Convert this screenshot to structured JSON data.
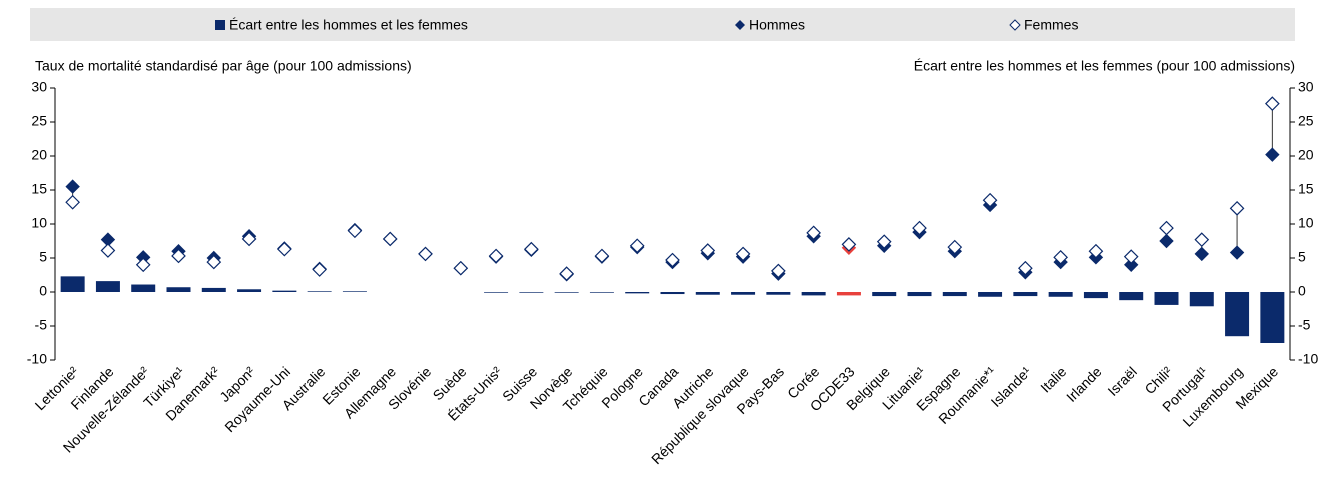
{
  "chart_data": {
    "type": "bar_dot",
    "ylabel": "Taux de mortalité standardisé par âge (pour 100 admissions)",
    "y2label": "Écart entre les hommes et les femmes (pour 100 admissions)",
    "categories": [
      "Lettonie²",
      "Finlande",
      "Nouvelle-Zélande²",
      "Türkiye¹",
      "Danemark²",
      "Japon²",
      "Royaume-Uni",
      "Australie",
      "Estonie",
      "Allemagne",
      "Slovénie",
      "Suède",
      "États-Unis²",
      "Suisse",
      "Norvège",
      "Tchéquie",
      "Pologne",
      "Canada",
      "Autriche",
      "République slovaque",
      "Pays-Bas",
      "Corée",
      "OCDE33",
      "Belgique",
      "Lituanie¹",
      "Espagne",
      "Roumanie*¹",
      "Islande¹",
      "Italie",
      "Irlande",
      "Israël",
      "Chili²",
      "Portugal¹",
      "Luxembourg",
      "Mexique"
    ],
    "series": [
      {
        "name": "Écart entre les hommes et les femmes",
        "kind": "bar",
        "axis": "y2",
        "color": "#0b2a6b",
        "colors": [
          "#0b2a6b",
          "#0b2a6b",
          "#0b2a6b",
          "#0b2a6b",
          "#0b2a6b",
          "#0b2a6b",
          "#0b2a6b",
          "#0b2a6b",
          "#0b2a6b",
          "#0b2a6b",
          "#0b2a6b",
          "#0b2a6b",
          "#0b2a6b",
          "#0b2a6b",
          "#0b2a6b",
          "#0b2a6b",
          "#0b2a6b",
          "#0b2a6b",
          "#0b2a6b",
          "#0b2a6b",
          "#0b2a6b",
          "#0b2a6b",
          "#e8413c",
          "#0b2a6b",
          "#0b2a6b",
          "#0b2a6b",
          "#0b2a6b",
          "#0b2a6b",
          "#0b2a6b",
          "#0b2a6b",
          "#0b2a6b",
          "#0b2a6b",
          "#0b2a6b",
          "#0b2a6b",
          "#0b2a6b"
        ],
        "values": [
          2.3,
          1.6,
          1.1,
          0.7,
          0.6,
          0.4,
          0.2,
          0.1,
          0.1,
          0.0,
          0.0,
          0.0,
          -0.1,
          -0.1,
          -0.1,
          -0.1,
          -0.2,
          -0.3,
          -0.4,
          -0.4,
          -0.4,
          -0.5,
          -0.5,
          -0.6,
          -0.6,
          -0.6,
          -0.7,
          -0.6,
          -0.7,
          -0.9,
          -1.2,
          -1.9,
          -2.1,
          -6.5,
          -7.5
        ]
      },
      {
        "name": "Hommes",
        "kind": "filled-diamond",
        "color": "#0b2a6b",
        "colors": [
          "#0b2a6b",
          "#0b2a6b",
          "#0b2a6b",
          "#0b2a6b",
          "#0b2a6b",
          "#0b2a6b",
          "#0b2a6b",
          "#0b2a6b",
          "#0b2a6b",
          "#0b2a6b",
          "#0b2a6b",
          "#0b2a6b",
          "#0b2a6b",
          "#0b2a6b",
          "#0b2a6b",
          "#0b2a6b",
          "#0b2a6b",
          "#0b2a6b",
          "#0b2a6b",
          "#0b2a6b",
          "#0b2a6b",
          "#0b2a6b",
          "#e8413c",
          "#0b2a6b",
          "#0b2a6b",
          "#0b2a6b",
          "#0b2a6b",
          "#0b2a6b",
          "#0b2a6b",
          "#0b2a6b",
          "#0b2a6b",
          "#0b2a6b",
          "#0b2a6b",
          "#0b2a6b",
          "#0b2a6b"
        ],
        "values": [
          15.5,
          7.7,
          5.1,
          6.0,
          5.0,
          8.2,
          6.4,
          3.4,
          9.1,
          7.8,
          5.6,
          3.5,
          5.2,
          6.2,
          2.6,
          5.2,
          6.6,
          4.4,
          5.7,
          5.2,
          2.7,
          8.2,
          6.5,
          6.8,
          8.8,
          6.0,
          12.8,
          2.9,
          4.4,
          5.1,
          4.0,
          7.5,
          5.6,
          5.8,
          20.2
        ]
      },
      {
        "name": "Femmes",
        "kind": "hollow-diamond",
        "color": "#0b2a6b",
        "values": [
          13.2,
          6.1,
          4.0,
          5.3,
          4.4,
          7.8,
          6.3,
          3.3,
          9.0,
          7.8,
          5.6,
          3.5,
          5.3,
          6.3,
          2.7,
          5.3,
          6.8,
          4.7,
          6.1,
          5.6,
          3.1,
          8.7,
          7.0,
          7.4,
          9.4,
          6.6,
          13.5,
          3.5,
          5.1,
          6.0,
          5.2,
          9.4,
          7.7,
          12.3,
          27.7
        ]
      }
    ],
    "ylim": [
      -10,
      30
    ],
    "yticks": [
      -10,
      -5,
      0,
      5,
      10,
      15,
      20,
      25,
      30
    ],
    "y2lim": [
      -10,
      30
    ],
    "y2ticks": [
      -10,
      -5,
      0,
      5,
      10,
      15,
      20,
      25,
      30
    ],
    "legend": "top"
  }
}
